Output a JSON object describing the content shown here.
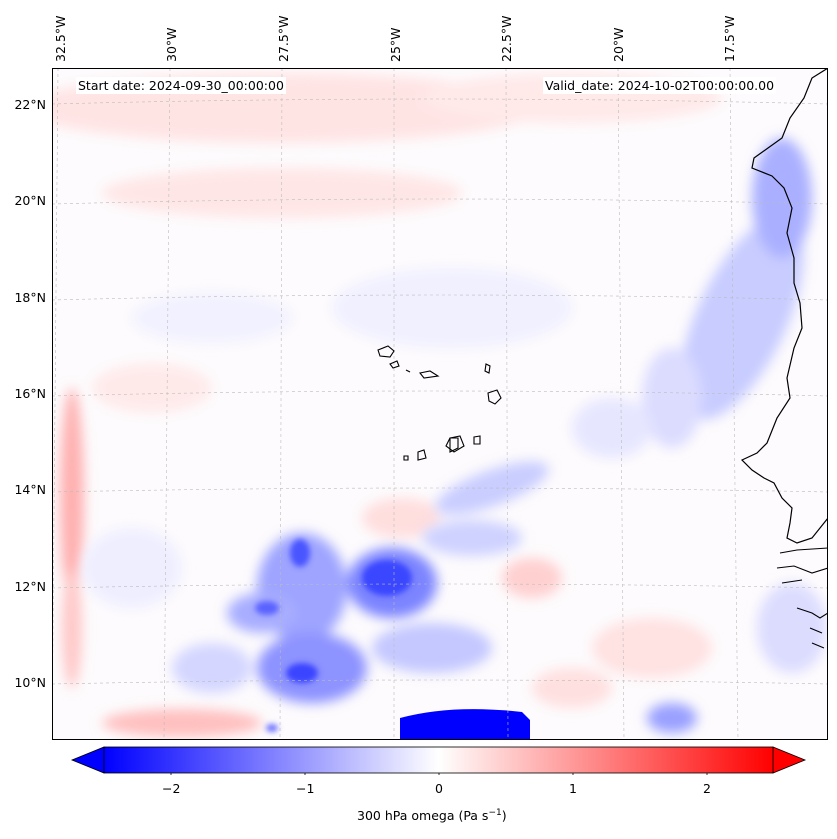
{
  "annotations": {
    "start": "Start date: 2024-09-30_00:00:00",
    "valid": "Valid_date: 2024-10-02T00:00:00.00"
  },
  "axes": {
    "longitudes": [
      "32.5°W",
      "30°W",
      "27.5°W",
      "25°W",
      "22.5°W",
      "20°W",
      "17.5°W"
    ],
    "latitudes": [
      "22°N",
      "20°N",
      "18°N",
      "16°N",
      "14°N",
      "12°N",
      "10°N"
    ]
  },
  "colorbar": {
    "ticks": [
      "−2",
      "−1",
      "0",
      "1",
      "2"
    ],
    "label": "300 hPa omega (Pa s",
    "label_exp": "−1",
    "label_end": ")",
    "range": [
      -2.5,
      2.5
    ],
    "extend": "both",
    "cmap": "bwr",
    "low_color": "#0000ff",
    "mid_color": "#ffffff",
    "high_color": "#ff0000"
  },
  "map": {
    "projection": "Lambert conformal",
    "gridlines": true,
    "coastline_color": "#000000"
  }
}
